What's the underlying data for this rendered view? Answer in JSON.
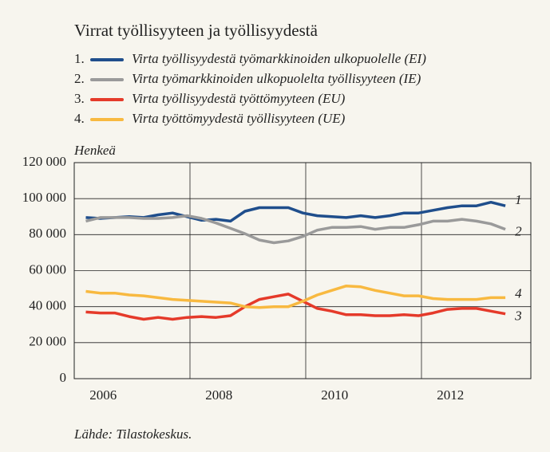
{
  "chart_data": {
    "type": "line",
    "title": "Virrat työllisyyteen ja työllisyydestä",
    "ylabel": "Henkeä",
    "source": "Lähde: Tilastokeskus.",
    "x": [
      2006.2,
      2006.45,
      2006.7,
      2006.95,
      2007.2,
      2007.45,
      2007.7,
      2007.95,
      2008.2,
      2008.45,
      2008.7,
      2008.95,
      2009.2,
      2009.45,
      2009.7,
      2009.95,
      2010.2,
      2010.45,
      2010.7,
      2010.95,
      2011.2,
      2011.45,
      2011.7,
      2011.95,
      2012.2,
      2012.45,
      2012.7,
      2012.95,
      2013.2,
      2013.45
    ],
    "series": [
      {
        "name": "Virta työllisyydestä työmarkkinoiden ulkopuolelle (EI)",
        "number": "1.",
        "end_label": "1",
        "color": "#1f4e8c",
        "values": [
          89500,
          89000,
          89500,
          90000,
          89500,
          91000,
          92000,
          90000,
          88000,
          88500,
          87500,
          93000,
          95000,
          95000,
          95000,
          92000,
          90500,
          90000,
          89500,
          90500,
          89500,
          90500,
          92000,
          92000,
          93500,
          95000,
          96000,
          96000,
          98000,
          96000
        ]
      },
      {
        "name": "Virta työmarkkinoiden ulkopuolelta työllisyyteen (IE)",
        "number": "2.",
        "end_label": "2",
        "color": "#9a9a9a",
        "values": [
          87500,
          89500,
          89500,
          89500,
          89000,
          89000,
          89500,
          90500,
          89000,
          86500,
          83500,
          80500,
          77000,
          75500,
          76500,
          79000,
          82500,
          84000,
          84000,
          84500,
          83000,
          84000,
          84000,
          85500,
          87500,
          87500,
          88500,
          87500,
          86000,
          83000
        ]
      },
      {
        "name": "Virta työllisyydestä työttömyyteen (EU)",
        "number": "3.",
        "end_label": "3",
        "color": "#e53a2a",
        "values": [
          37000,
          36500,
          36500,
          34500,
          33000,
          34000,
          33000,
          34000,
          34500,
          34000,
          35000,
          40000,
          44000,
          45500,
          47000,
          43000,
          39000,
          37500,
          35500,
          35500,
          35000,
          35000,
          35500,
          35000,
          36500,
          38500,
          39000,
          39000,
          37500,
          36000
        ]
      },
      {
        "name": "Virta työttömyydestä työllisyyteen (UE)",
        "number": "4.",
        "end_label": "4",
        "color": "#f8b940",
        "values": [
          48500,
          47500,
          47500,
          46500,
          46000,
          45000,
          44000,
          43500,
          43000,
          42500,
          42000,
          40000,
          39500,
          40000,
          40000,
          43000,
          46500,
          49000,
          51500,
          51000,
          49000,
          47500,
          46000,
          46000,
          44500,
          44000,
          44000,
          44000,
          45000,
          45000
        ]
      }
    ],
    "xlim": [
      2006,
      2013.89
    ],
    "xticks": [
      {
        "value": 2006.5,
        "label": "2006"
      },
      {
        "value": 2008.5,
        "label": "2008"
      },
      {
        "value": 2010.5,
        "label": "2010"
      },
      {
        "value": 2012.5,
        "label": "2012"
      }
    ],
    "xgrid": [
      2008,
      2010,
      2012
    ],
    "ylim": [
      0,
      120000
    ],
    "yticks": [
      0,
      {
        "value": 20000,
        "label": "20 000"
      },
      {
        "value": 40000,
        "label": "40 000"
      },
      {
        "value": 60000,
        "label": "60 000"
      },
      {
        "value": 80000,
        "label": "80 000"
      },
      {
        "value": 100000,
        "label": "100 000"
      },
      {
        "value": 120000,
        "label": "120 000"
      }
    ],
    "grid": true
  }
}
